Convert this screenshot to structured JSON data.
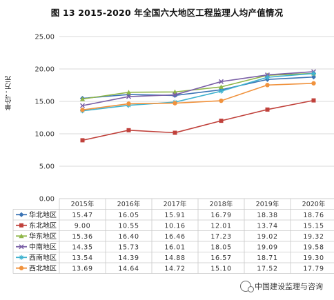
{
  "title": "图 13    2015-2020 年全国六大地区工程监理人均产值情况",
  "watermark": "中国建设监理与咨询",
  "chart_data": {
    "type": "line",
    "title": "图 13    2015-2020 年全国六大地区工程监理人均产值情况",
    "ylabel": "单位：万元",
    "xlabel": "",
    "categories": [
      "2015年",
      "2016年",
      "2017年",
      "2018年",
      "2019年",
      "2020年"
    ],
    "yticks": [
      "0.00",
      "5.00",
      "10.00",
      "15.00",
      "20.00",
      "25.00"
    ],
    "ylim": [
      0,
      25
    ],
    "grid": true,
    "legend": "table-below",
    "series": [
      {
        "name": "华北地区",
        "color": "#3b74b5",
        "marker": "diamond",
        "values": [
          15.47,
          16.05,
          15.91,
          16.79,
          18.38,
          18.76
        ],
        "labels": [
          "15.47",
          "16.05",
          "15.91",
          "16.79",
          "18.38",
          "18.76"
        ]
      },
      {
        "name": "东北地区",
        "color": "#c0413b",
        "marker": "square",
        "values": [
          9.0,
          10.55,
          10.16,
          12.01,
          13.74,
          15.15
        ],
        "labels": [
          "9.00",
          "10.55",
          "10.16",
          "12.01",
          "13.74",
          "15.15"
        ]
      },
      {
        "name": "华东地区",
        "color": "#8fb648",
        "marker": "triangle",
        "values": [
          15.36,
          16.4,
          16.46,
          17.23,
          19.02,
          19.32
        ],
        "labels": [
          "15.36",
          "16.40",
          "16.46",
          "17.23",
          "19.02",
          "19.32"
        ]
      },
      {
        "name": "中南地区",
        "color": "#7a5fa6",
        "marker": "x",
        "values": [
          14.35,
          15.73,
          16.01,
          18.05,
          19.09,
          19.58
        ],
        "labels": [
          "14.35",
          "15.73",
          "16.01",
          "18.05",
          "19.09",
          "19.58"
        ]
      },
      {
        "name": "西南地区",
        "color": "#3fb2cf",
        "marker": "star",
        "values": [
          13.54,
          14.39,
          14.88,
          16.57,
          18.71,
          19.3
        ],
        "labels": [
          "13.54",
          "14.39",
          "14.88",
          "16.57",
          "18.71",
          "19.30"
        ]
      },
      {
        "name": "西北地区",
        "color": "#f0923d",
        "marker": "circle",
        "values": [
          13.69,
          14.64,
          14.72,
          15.1,
          17.52,
          17.79
        ],
        "labels": [
          "13.69",
          "14.64",
          "14.72",
          "15.10",
          "17.52",
          "17.79"
        ]
      }
    ]
  }
}
